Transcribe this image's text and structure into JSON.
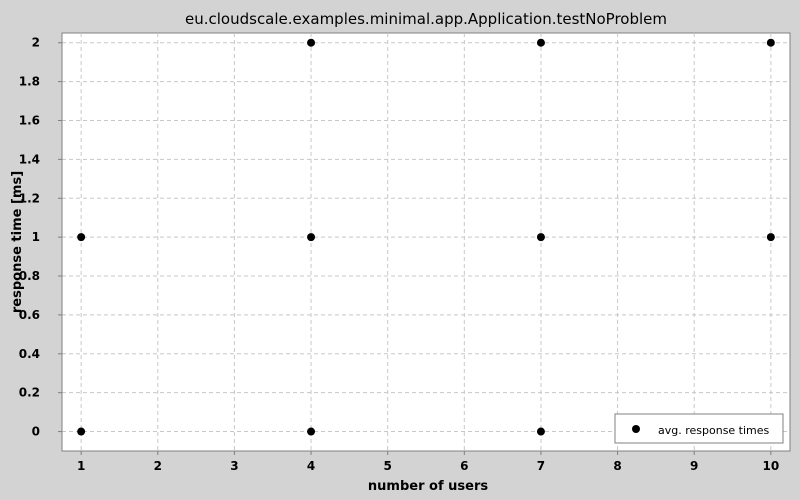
{
  "chart_data": {
    "type": "scatter",
    "title": "eu.cloudscale.examples.minimal.app.Application.testNoProblem",
    "xlabel": "number of users",
    "ylabel": "response time [ms]",
    "xlim": [
      0.75,
      10.25
    ],
    "ylim": [
      -0.1,
      2.05
    ],
    "x_ticks": [
      1,
      2,
      3,
      4,
      5,
      6,
      7,
      8,
      9,
      10
    ],
    "y_ticks": [
      0,
      0.2,
      0.4,
      0.6,
      0.8,
      1,
      1.2,
      1.4,
      1.6,
      1.8,
      2
    ],
    "grid": true,
    "legend_position": "bottom-right",
    "series": [
      {
        "name": "avg. response times",
        "color": "#000000",
        "points": [
          {
            "x": 1,
            "y": 1
          },
          {
            "x": 1,
            "y": 0
          },
          {
            "x": 4,
            "y": 2
          },
          {
            "x": 4,
            "y": 1
          },
          {
            "x": 4,
            "y": 0
          },
          {
            "x": 7,
            "y": 2
          },
          {
            "x": 7,
            "y": 1
          },
          {
            "x": 7,
            "y": 0
          },
          {
            "x": 10,
            "y": 2
          },
          {
            "x": 10,
            "y": 1
          },
          {
            "x": 10,
            "y": 0
          }
        ]
      }
    ]
  }
}
